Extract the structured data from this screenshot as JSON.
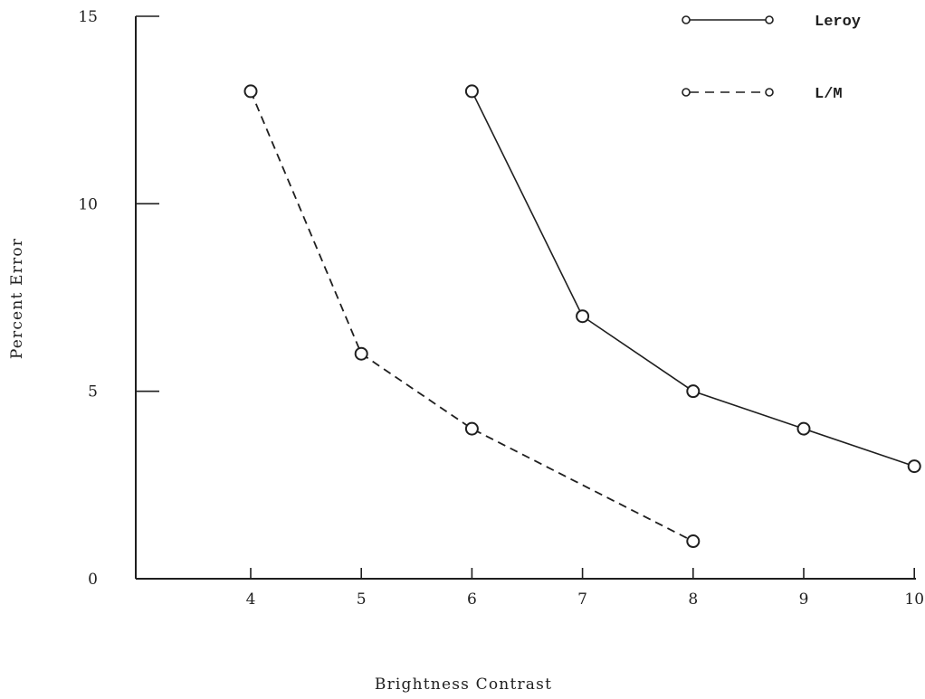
{
  "chart_data": {
    "type": "line",
    "title": "",
    "xlabel": "Brightness Contrast",
    "ylabel": "Percent Error",
    "xlim": [
      3,
      10
    ],
    "ylim": [
      0,
      15
    ],
    "x_ticks": [
      4,
      5,
      6,
      7,
      8,
      9,
      10
    ],
    "x_tick_labels": [
      "4",
      "5",
      "6",
      "7",
      "8",
      "9",
      "10"
    ],
    "y_ticks": [
      0,
      5,
      10,
      15
    ],
    "y_tick_labels": [
      "0",
      "5",
      "10",
      "15"
    ],
    "grid": false,
    "legend_position": "top-right",
    "series": [
      {
        "name": "Leroy",
        "style": "solid",
        "marker": "open-circle",
        "x": [
          6,
          7,
          8,
          9,
          10
        ],
        "y": [
          13,
          7,
          5,
          4,
          3
        ]
      },
      {
        "name": "L/M",
        "style": "dashed",
        "marker": "open-circle",
        "x": [
          4,
          5,
          6,
          8
        ],
        "y": [
          13,
          6,
          4,
          1
        ]
      }
    ],
    "colors": {
      "ink": "#1f1f1f",
      "background": "#ffffff"
    }
  }
}
